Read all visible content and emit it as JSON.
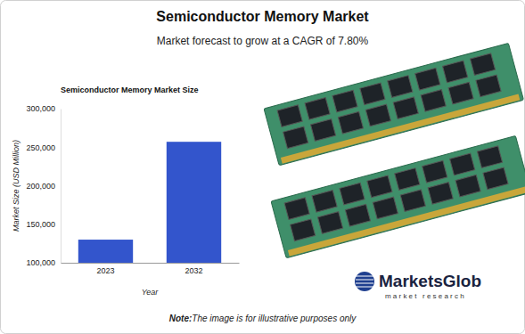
{
  "header": {
    "title": "Semiconductor Memory Market",
    "subtitle": "Market forecast to grow at a CAGR of 7.80%"
  },
  "chart_data": {
    "type": "bar",
    "title": "Semiconductor Memory Market Size",
    "x_label": "Year",
    "y_label": "Market Size (USD Million)",
    "categories": [
      "2023",
      "2032"
    ],
    "values": [
      130000,
      257000
    ],
    "color": "#3355cc",
    "ylim": [
      100000,
      300000
    ],
    "yticks": [
      {
        "value": 100000,
        "label": "100,000"
      },
      {
        "value": 150000,
        "label": "150,000"
      },
      {
        "value": 200000,
        "label": "200,000"
      },
      {
        "value": 250000,
        "label": "250,000"
      },
      {
        "value": 300000,
        "label": "300,000"
      }
    ],
    "grid": false
  },
  "logo": {
    "brand": "MarketsGlob",
    "tagline": "market research"
  },
  "note": {
    "label": "Note:",
    "text": "The image is for illustrative purposes only"
  }
}
